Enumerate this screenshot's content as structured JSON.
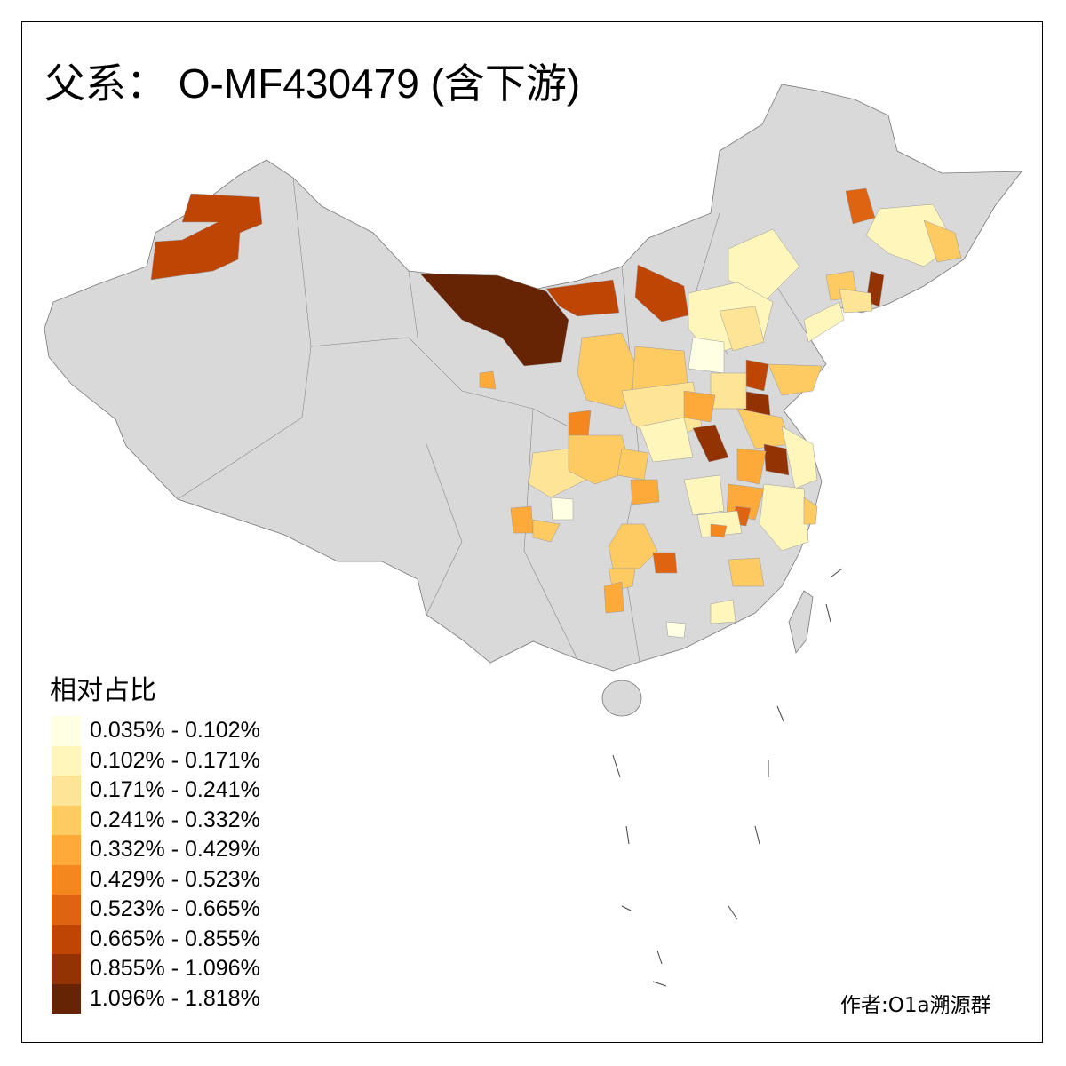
{
  "title": "父系： O-MF430479 (含下游)",
  "legend": {
    "title": "相对占比",
    "items": [
      {
        "label": "0.035% - 0.102%",
        "color": "#FFFFE4"
      },
      {
        "label": "0.102% - 0.171%",
        "color": "#FFF6BC"
      },
      {
        "label": "0.171% - 0.241%",
        "color": "#FEE497"
      },
      {
        "label": "0.241% - 0.332%",
        "color": "#FECB62"
      },
      {
        "label": "0.332% - 0.429%",
        "color": "#FDAA3A"
      },
      {
        "label": "0.429% - 0.523%",
        "color": "#F4881F"
      },
      {
        "label": "0.523% - 0.665%",
        "color": "#DF6411"
      },
      {
        "label": "0.665% - 0.855%",
        "color": "#BE4503"
      },
      {
        "label": "0.855% - 1.096%",
        "color": "#933304"
      },
      {
        "label": "1.096% - 1.818%",
        "color": "#662405"
      }
    ]
  },
  "map": {
    "base_color": "#D9D9D9",
    "border_color": "#888888"
  },
  "credit": "作者:O1a溯源群"
}
